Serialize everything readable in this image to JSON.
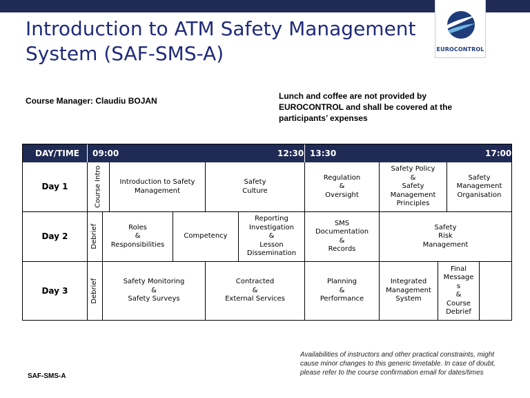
{
  "title": "Introduction to ATM Safety Management System (SAF-SMS-A)",
  "logo": {
    "text": "EUROCONTROL",
    "icon": "eurocontrol-logo-icon"
  },
  "course_manager": "Course Manager: Claudiu BOJAN",
  "notice": "Lunch and coffee are not provided by EUROCONTROL and shall be covered at the participants’ expenses",
  "timetable": {
    "header": {
      "day_time": "DAY/TIME",
      "t1": "09:00",
      "t2": "12:30",
      "t3": "13:30",
      "t4": "17:00"
    },
    "day1": {
      "label": "Day 1",
      "c1": "Course Intro",
      "c2": "Introduction to Safety\nManagement",
      "c3": "Safety\nCulture",
      "c4": "Regulation\n&\nOversight",
      "c5": "Safety Policy\n&\nSafety\nManagement\nPrinciples",
      "c6": "Safety\nManagement\nOrganisation"
    },
    "day2": {
      "label": "Day 2",
      "c1": "Debrief",
      "c2": "Roles\n&\nResponsibilities",
      "c3": "Competency",
      "c4": "Reporting\nInvestigation\n&\nLesson\nDissemination",
      "c5": "SMS\nDocumentation\n&\nRecords",
      "c6": "Safety\nRisk\nManagement"
    },
    "day3": {
      "label": "Day 3",
      "c1": "Debrief",
      "c2": "Safety Monitoring\n&\nSafety Surveys",
      "c3": "Contracted\n&\nExternal Services",
      "c4": "Planning\n&\nPerformance",
      "c5": "Integrated\nManagement\nSystem",
      "c6": "Final\nMessage\ns\n&\nCourse\nDebrief",
      "c7": ""
    }
  },
  "disclaimer": "Availabilities of instructors and other practical constraints, might cause minor changes to this generic timetable. In case of doubt, please refer to the course confirmation email for dates/times",
  "footer_code": "SAF-SMS-A",
  "colors": {
    "navy": "#1f2a55",
    "title_blue": "#1f2a7a",
    "logo_blue": "#1e3c7a"
  }
}
